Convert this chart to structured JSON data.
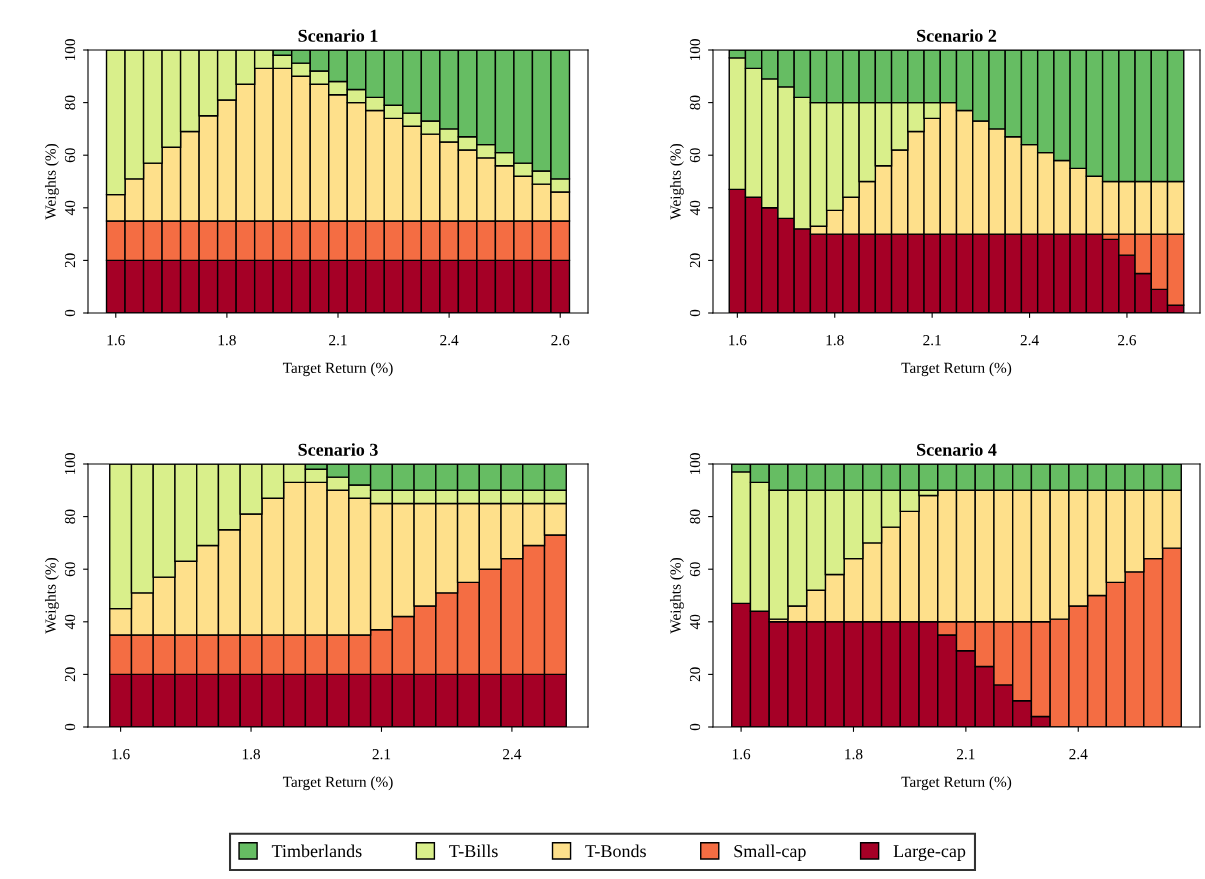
{
  "chart_data": [
    {
      "type": "bar",
      "stacked": true,
      "title": "Scenario 1",
      "xlabel": "Target Return (%)",
      "ylabel": "Weights (%)",
      "ylim": [
        0,
        100
      ],
      "yticks": [
        0,
        20,
        40,
        60,
        80,
        100
      ],
      "categories": [
        "1.6",
        null,
        null,
        null,
        null,
        null,
        "1.8",
        null,
        null,
        null,
        null,
        null,
        "2.1",
        null,
        null,
        null,
        null,
        null,
        "2.4",
        null,
        null,
        null,
        null,
        null,
        "2.6"
      ],
      "series": [
        {
          "color": "#a50026",
          "values": [
            20,
            20,
            20,
            20,
            20,
            20,
            20,
            20,
            20,
            20,
            20,
            20,
            20,
            20,
            20,
            20,
            20,
            20,
            20,
            20,
            20,
            20,
            20,
            20,
            20
          ]
        },
        {
          "color": "#f46d43",
          "values": [
            15,
            15,
            15,
            15,
            15,
            15,
            15,
            15,
            15,
            15,
            15,
            15,
            15,
            15,
            15,
            15,
            15,
            15,
            15,
            15,
            15,
            15,
            15,
            15,
            15
          ]
        },
        {
          "color": "#fee08b",
          "values": [
            10,
            16,
            22,
            28,
            34,
            40,
            46,
            52,
            58,
            58,
            55,
            52,
            48,
            45,
            42,
            39,
            36,
            33,
            30,
            27,
            24,
            21,
            17,
            14,
            11
          ]
        },
        {
          "color": "#d9ef8b",
          "values": [
            55,
            49,
            43,
            37,
            31,
            25,
            19,
            13,
            7,
            5,
            5,
            5,
            5,
            5,
            5,
            5,
            5,
            5,
            5,
            5,
            5,
            5,
            5,
            5,
            5
          ]
        },
        {
          "color": "#66bd63",
          "values": [
            0,
            0,
            0,
            0,
            0,
            0,
            0,
            0,
            0,
            2,
            5,
            8,
            12,
            15,
            18,
            21,
            24,
            27,
            30,
            33,
            36,
            39,
            43,
            46,
            49
          ]
        }
      ]
    },
    {
      "type": "bar",
      "stacked": true,
      "title": "Scenario 2",
      "xlabel": "Target Return (%)",
      "ylabel": "Weights (%)",
      "ylim": [
        0,
        100
      ],
      "yticks": [
        0,
        20,
        40,
        60,
        80,
        100
      ],
      "categories": [
        "1.6",
        null,
        null,
        null,
        null,
        null,
        "1.8",
        null,
        null,
        null,
        null,
        null,
        "2.1",
        null,
        null,
        null,
        null,
        null,
        "2.4",
        null,
        null,
        null,
        null,
        null,
        "2.6",
        null,
        null,
        null
      ],
      "series": [
        {
          "color": "#a50026",
          "values": [
            47,
            44,
            40,
            36,
            32,
            30,
            30,
            30,
            30,
            30,
            30,
            30,
            30,
            30,
            30,
            30,
            30,
            30,
            30,
            30,
            30,
            30,
            30,
            28,
            22,
            15,
            9,
            3
          ]
        },
        {
          "color": "#f46d43",
          "values": [
            0,
            0,
            0,
            0,
            0,
            0,
            0,
            0,
            0,
            0,
            0,
            0,
            0,
            0,
            0,
            0,
            0,
            0,
            0,
            0,
            0,
            0,
            0,
            2,
            8,
            15,
            21,
            27
          ]
        },
        {
          "color": "#fee08b",
          "values": [
            0,
            0,
            0,
            0,
            0,
            3,
            9,
            14,
            20,
            26,
            32,
            39,
            44,
            50,
            47,
            43,
            40,
            37,
            34,
            31,
            28,
            25,
            22,
            20,
            20,
            20,
            20,
            20
          ]
        },
        {
          "color": "#d9ef8b",
          "values": [
            50,
            49,
            49,
            50,
            50,
            47,
            41,
            36,
            30,
            24,
            18,
            11,
            6,
            0,
            0,
            0,
            0,
            0,
            0,
            0,
            0,
            0,
            0,
            0,
            0,
            0,
            0,
            0
          ]
        },
        {
          "color": "#66bd63",
          "values": [
            3,
            7,
            11,
            14,
            18,
            20,
            20,
            20,
            20,
            20,
            20,
            20,
            20,
            20,
            23,
            27,
            30,
            33,
            36,
            39,
            42,
            45,
            48,
            50,
            50,
            50,
            50,
            50
          ]
        }
      ]
    },
    {
      "type": "bar",
      "stacked": true,
      "title": "Scenario 3",
      "xlabel": "Target Return (%)",
      "ylabel": "Weights (%)",
      "ylim": [
        0,
        100
      ],
      "yticks": [
        0,
        20,
        40,
        60,
        80,
        100
      ],
      "categories": [
        "1.6",
        null,
        null,
        null,
        null,
        null,
        "1.8",
        null,
        null,
        null,
        null,
        null,
        "2.1",
        null,
        null,
        null,
        null,
        null,
        "2.4",
        null,
        null
      ],
      "series": [
        {
          "color": "#a50026",
          "values": [
            20,
            20,
            20,
            20,
            20,
            20,
            20,
            20,
            20,
            20,
            20,
            20,
            20,
            20,
            20,
            20,
            20,
            20,
            20,
            20,
            20
          ]
        },
        {
          "color": "#f46d43",
          "values": [
            15,
            15,
            15,
            15,
            15,
            15,
            15,
            15,
            15,
            15,
            15,
            15,
            17,
            22,
            26,
            31,
            35,
            40,
            44,
            49,
            53
          ]
        },
        {
          "color": "#fee08b",
          "values": [
            10,
            16,
            22,
            28,
            34,
            40,
            46,
            52,
            58,
            58,
            55,
            52,
            48,
            43,
            39,
            34,
            30,
            25,
            21,
            16,
            12
          ]
        },
        {
          "color": "#d9ef8b",
          "values": [
            55,
            49,
            43,
            37,
            31,
            25,
            19,
            13,
            7,
            5,
            5,
            5,
            5,
            5,
            5,
            5,
            5,
            5,
            5,
            5,
            5
          ]
        },
        {
          "color": "#66bd63",
          "values": [
            0,
            0,
            0,
            0,
            0,
            0,
            0,
            0,
            0,
            2,
            5,
            8,
            10,
            10,
            10,
            10,
            10,
            10,
            10,
            10,
            10
          ]
        }
      ]
    },
    {
      "type": "bar",
      "stacked": true,
      "title": "Scenario 4",
      "xlabel": "Target Return (%)",
      "ylabel": "Weights (%)",
      "legend": "bottom",
      "ylim": [
        0,
        100
      ],
      "yticks": [
        0,
        20,
        40,
        60,
        80,
        100
      ],
      "categories": [
        "1.6",
        null,
        null,
        null,
        null,
        null,
        "1.8",
        null,
        null,
        null,
        null,
        null,
        "2.1",
        null,
        null,
        null,
        null,
        null,
        "2.4",
        null,
        null,
        null,
        null,
        null
      ],
      "series": [
        {
          "name": "Large-cap",
          "color": "#a50026",
          "values": [
            47,
            44,
            40,
            40,
            40,
            40,
            40,
            40,
            40,
            40,
            40,
            35,
            29,
            23,
            16,
            10,
            4,
            0,
            0,
            0,
            0,
            0,
            0,
            0
          ]
        },
        {
          "name": "Small-cap",
          "color": "#f46d43",
          "values": [
            0,
            0,
            0,
            0,
            0,
            0,
            0,
            0,
            0,
            0,
            0,
            5,
            11,
            17,
            24,
            30,
            36,
            41,
            46,
            50,
            55,
            59,
            64,
            68
          ]
        },
        {
          "name": "T-Bonds",
          "color": "#fee08b",
          "values": [
            0,
            0,
            1,
            6,
            12,
            18,
            24,
            30,
            36,
            42,
            48,
            50,
            50,
            50,
            50,
            50,
            50,
            49,
            44,
            40,
            35,
            31,
            26,
            22
          ]
        },
        {
          "name": "T-Bills",
          "color": "#d9ef8b",
          "values": [
            50,
            49,
            49,
            44,
            38,
            32,
            26,
            20,
            14,
            8,
            2,
            0,
            0,
            0,
            0,
            0,
            0,
            0,
            0,
            0,
            0,
            0,
            0,
            0
          ]
        },
        {
          "name": "Timberlands",
          "color": "#66bd63",
          "values": [
            3,
            7,
            10,
            10,
            10,
            10,
            10,
            10,
            10,
            10,
            10,
            10,
            10,
            10,
            10,
            10,
            10,
            10,
            10,
            10,
            10,
            10,
            10,
            10
          ]
        }
      ]
    }
  ]
}
